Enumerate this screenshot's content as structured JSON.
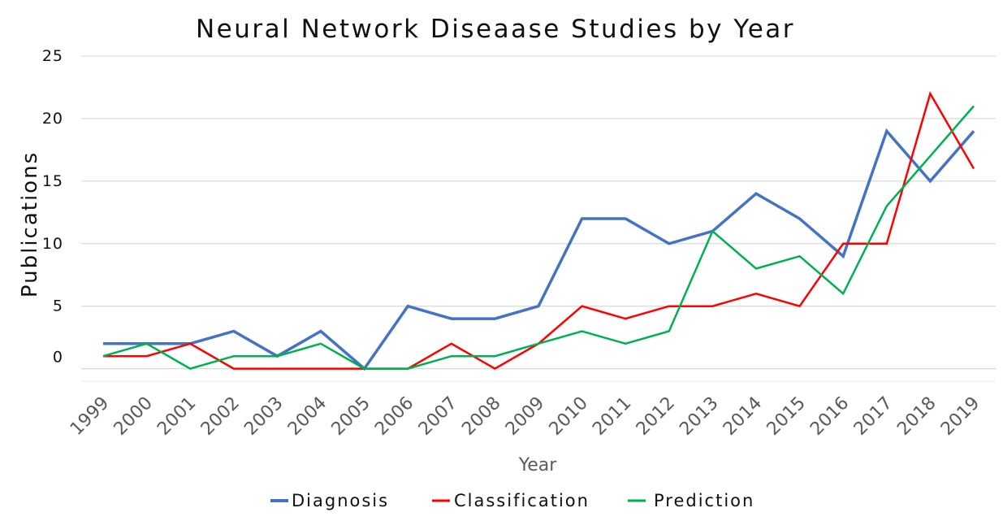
{
  "chart_data": {
    "type": "line",
    "title": "Neural Network Diseaase Studies by Year",
    "xlabel": "Year",
    "ylabel": "Publications",
    "ylim": [
      -1,
      25
    ],
    "yticks": [
      25,
      20,
      15,
      10,
      5,
      0
    ],
    "grid": true,
    "legend_position": "bottom",
    "categories": [
      "1999",
      "2000",
      "2001",
      "2002",
      "2003",
      "2004",
      "2005",
      "2006",
      "2007",
      "2008",
      "2009",
      "2010",
      "2011",
      "2012",
      "2013",
      "2014",
      "2015",
      "2016",
      "2017",
      "2018",
      "2019"
    ],
    "series": [
      {
        "name": "Diagnosis",
        "color": "#4472c4",
        "values": [
          2,
          2,
          2,
          3,
          1,
          3,
          0,
          5,
          4,
          4,
          5,
          12,
          12,
          10,
          11,
          14,
          12,
          9,
          19,
          15,
          19
        ]
      },
      {
        "name": "Classification",
        "color": "#ff0000",
        "values": [
          1,
          1,
          2,
          0,
          0,
          0,
          0,
          0,
          2,
          0,
          2,
          5,
          4,
          5,
          5,
          6,
          5,
          10,
          10,
          22,
          16
        ]
      },
      {
        "name": "Prediction",
        "color": "#00b050",
        "values": [
          1,
          2,
          0,
          1,
          1,
          2,
          0,
          0,
          1,
          1,
          2,
          3,
          2,
          3,
          11,
          8,
          9,
          6,
          13,
          17,
          21
        ]
      }
    ]
  }
}
